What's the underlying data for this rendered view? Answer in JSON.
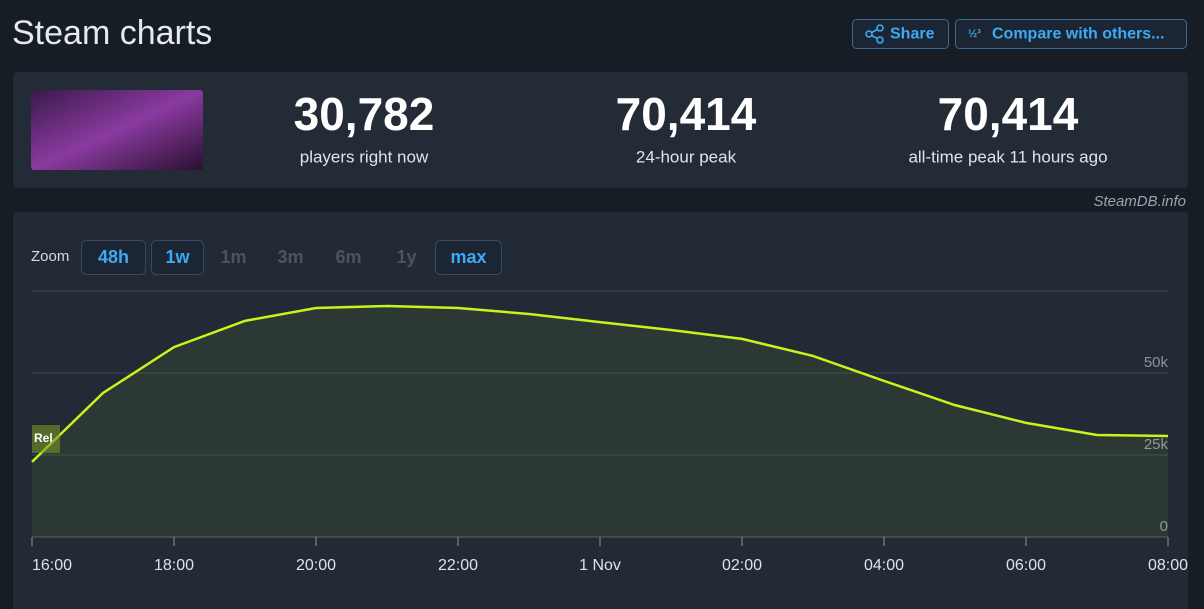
{
  "header": {
    "title": "Steam charts",
    "buttons": [
      "Share",
      "Compare with others..."
    ]
  },
  "stats": [
    {
      "value": "30,782",
      "label": "players right now"
    },
    {
      "value": "70,414",
      "label": "24-hour peak"
    },
    {
      "value": "70,414",
      "label": "all-time peak 11 hours ago"
    }
  ],
  "credit": "SteamDB.info",
  "zoom": {
    "label": "Zoom",
    "options": [
      {
        "label": "48h",
        "available": true
      },
      {
        "label": "1w",
        "available": true
      },
      {
        "label": "1m",
        "available": false
      },
      {
        "label": "3m",
        "available": false
      },
      {
        "label": "6m",
        "available": false
      },
      {
        "label": "1y",
        "available": false
      },
      {
        "label": "max",
        "available": true
      }
    ]
  },
  "chart_data": {
    "type": "line",
    "color": "#c8f31d",
    "grid": true,
    "annotations": [
      "Rel"
    ],
    "x": [
      0,
      1,
      2,
      3,
      4,
      5,
      6,
      7,
      8,
      9,
      10,
      11,
      12,
      13,
      14,
      15,
      16
    ],
    "values": [
      22900,
      43900,
      57900,
      65900,
      69800,
      70414,
      69800,
      68000,
      65500,
      63100,
      60400,
      55200,
      47600,
      40200,
      34800,
      31100,
      30782
    ],
    "xlim": [
      0,
      16
    ],
    "xticks": [
      {
        "value": 0,
        "label": "16:00"
      },
      {
        "value": 2,
        "label": "18:00"
      },
      {
        "value": 4,
        "label": "20:00"
      },
      {
        "value": 6,
        "label": "22:00"
      },
      {
        "value": 8,
        "label": "1 Nov"
      },
      {
        "value": 10,
        "label": "02:00"
      },
      {
        "value": 12,
        "label": "04:00"
      },
      {
        "value": 14,
        "label": "06:00"
      },
      {
        "value": 16,
        "label": "08:00"
      }
    ],
    "ylim": [
      0,
      75000
    ],
    "yticks": [
      0,
      {
        "value": 25000,
        "label": "25k"
      },
      {
        "value": 50000,
        "label": "50k"
      }
    ]
  }
}
